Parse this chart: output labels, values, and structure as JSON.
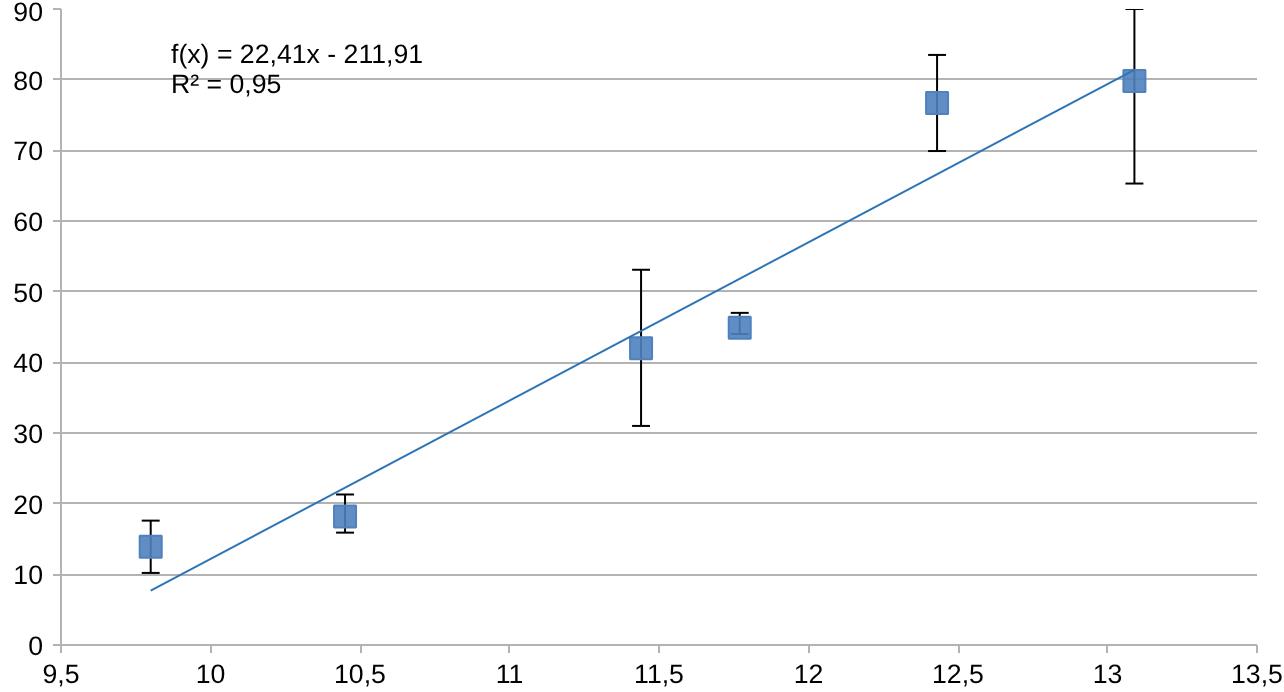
{
  "chart_data": {
    "type": "scatter",
    "grid": "y",
    "xlim": [
      9.5,
      13.5
    ],
    "xticks": [
      {
        "value": 9.5,
        "label": "9,5"
      },
      10,
      {
        "value": 10.5,
        "label": "10,5"
      },
      11,
      {
        "value": 11.5,
        "label": "11,5"
      },
      12,
      {
        "value": 12.5,
        "label": "12,5"
      },
      13,
      {
        "value": 13.5,
        "label": "13,5"
      }
    ],
    "ylim": [
      0,
      90
    ],
    "yticks": [
      0,
      10,
      20,
      30,
      40,
      50,
      60,
      70,
      80,
      90
    ],
    "series": [
      {
        "marker": "square",
        "color": "#4f81bd",
        "x": [
          9.8,
          10.45,
          11.44,
          11.77,
          12.43,
          13.09
        ],
        "values": [
          13.9,
          18.2,
          42.0,
          44.9,
          76.7,
          79.8
        ],
        "errors": [
          [
            10.2,
            17.6
          ],
          [
            15.9,
            21.3
          ],
          [
            31,
            53.1
          ],
          [
            44,
            47
          ],
          [
            69.9,
            83.5
          ],
          [
            65.3,
            90
          ]
        ]
      },
      {
        "type": "line",
        "color": "#2e75b6",
        "x": [
          9.8,
          13.09
        ],
        "values": [
          7.7,
          81.4
        ]
      }
    ],
    "annotations": [
      "f(x) = 22,41x - 211,91",
      "R² = 0,95"
    ]
  }
}
